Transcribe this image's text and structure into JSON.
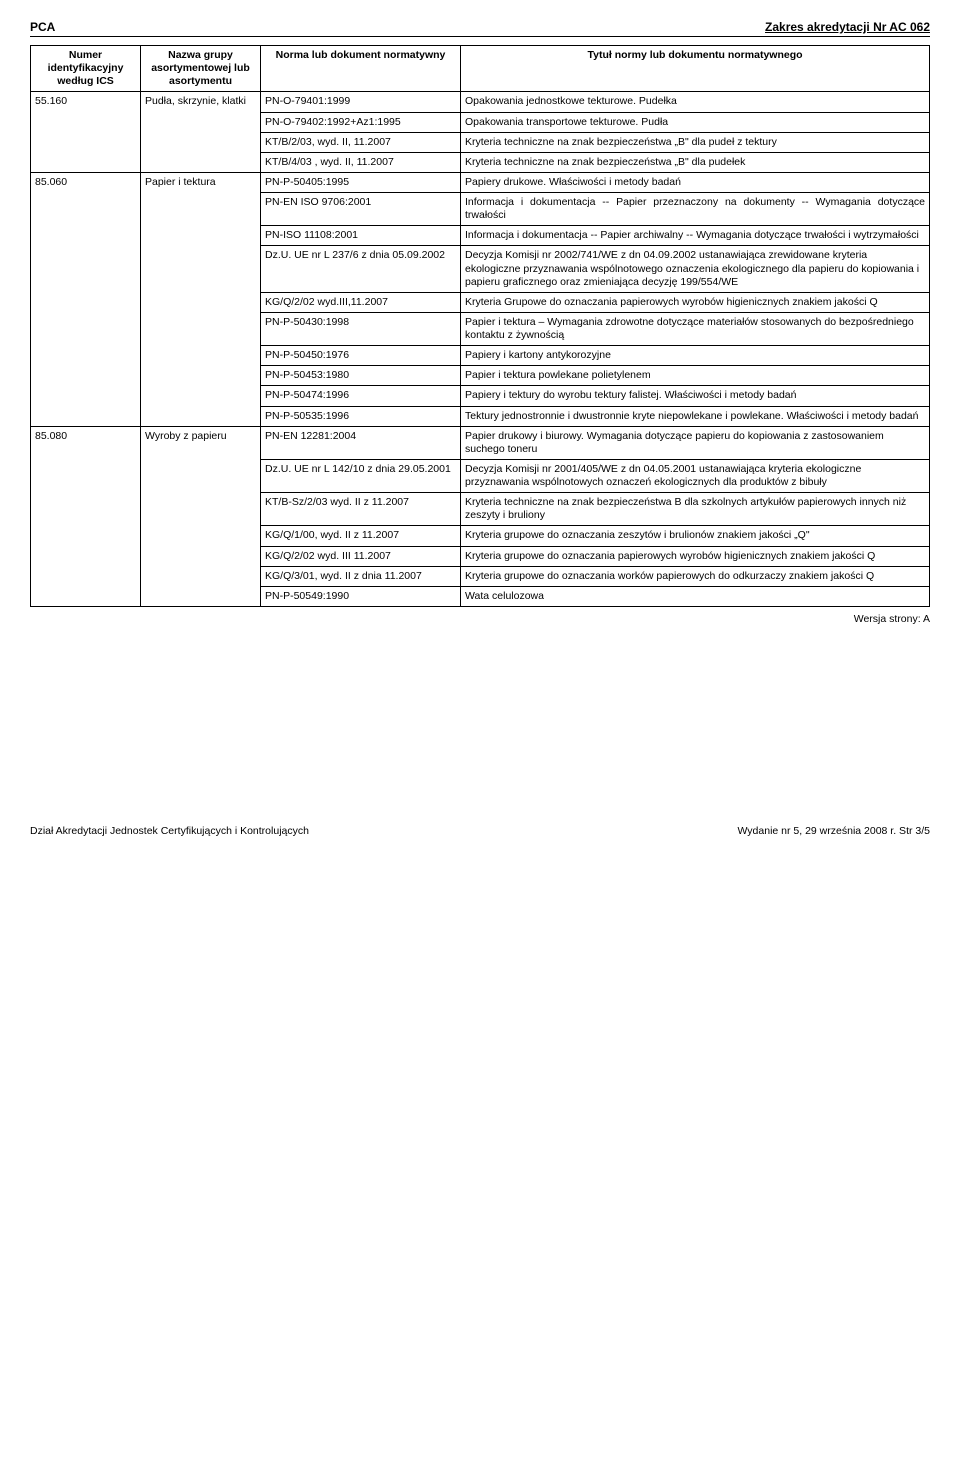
{
  "header": {
    "left": "PCA",
    "right": "Zakres akredytacji Nr AC 062"
  },
  "tableheaders": {
    "h1": "Numer identyfikacyjny według ICS",
    "h2": "Nazwa grupy asortymentowej lub asortymentu",
    "h3": "Norma lub dokument normatywny",
    "h4": "Tytuł normy lub dokumentu normatywnego"
  },
  "r1c1": "55.160",
  "r1c2": "Pudła, skrzynie, klatki",
  "r1c3": "PN-O-79401:1999",
  "r1c4": "Opakowania jednostkowe tekturowe. Pudełka",
  "r2c3": "PN-O-79402:1992+Az1:1995",
  "r2c4": "Opakowania transportowe tekturowe. Pudła",
  "r3c3": "KT/B/2/03, wyd. II, 11.2007",
  "r3c4": "Kryteria techniczne na znak bezpieczeństwa „B\" dla pudeł z tektury",
  "r4c3": "KT/B/4/03 , wyd. II, 11.2007",
  "r4c4": "Kryteria techniczne na znak bezpieczeństwa „B\" dla pudełek",
  "r5c1": "85.060",
  "r5c2": "Papier i tektura",
  "r5c3": "PN-P-50405:1995",
  "r5c4": "Papiery drukowe. Właściwości i metody badań",
  "r6c3": "PN-EN ISO 9706:2001",
  "r6c4": "Informacja i dokumentacja -- Papier przeznaczony na dokumenty -- Wymagania dotyczące trwałości",
  "r7c3": "PN-ISO 11108:2001",
  "r7c4": "Informacja i dokumentacja -- Papier archiwalny -- Wymagania dotyczące trwałości i wytrzymałości",
  "r8c3": "Dz.U. UE nr L 237/6 z dnia 05.09.2002",
  "r8c4": "Decyzja Komisji nr 2002/741/WE z dn 04.09.2002 ustanawiająca zrewidowane kryteria ekologiczne przyznawania wspólnotowego oznaczenia ekologicznego dla papieru do kopiowania i papieru graficznego oraz zmieniająca decyzję 199/554/WE",
  "r9c3": "KG/Q/2/02 wyd.III,11.2007",
  "r9c4": "Kryteria Grupowe do oznaczania papierowych wyrobów higienicznych znakiem jakości Q",
  "r10c3": "PN-P-50430:1998",
  "r10c4": "Papier i tektura – Wymagania zdrowotne dotyczące materiałów stosowanych do bezpośredniego kontaktu z żywnością",
  "r11c3": "PN-P-50450:1976",
  "r11c4": "Papiery i kartony antykorozyjne",
  "r12c3": "PN-P-50453:1980",
  "r12c4": "Papier i tektura powlekane polietylenem",
  "r13c3": "PN-P-50474:1996",
  "r13c4": "Papiery i tektury do wyrobu tektury falistej. Właściwości i metody badań",
  "r14c3": "PN-P-50535:1996",
  "r14c4": "Tektury jednostronnie i dwustronnie kryte niepowlekane i powlekane. Właściwości i metody badań",
  "r15c1": "85.080",
  "r15c2": "Wyroby z papieru",
  "r15c3": "PN-EN 12281:2004",
  "r15c4": "Papier drukowy i biurowy. Wymagania dotyczące papieru do kopiowania z zastosowaniem suchego toneru",
  "r16c3": "Dz.U. UE nr L 142/10 z dnia 29.05.2001",
  "r16c4": "Decyzja Komisji nr 2001/405/WE z dn 04.05.2001 ustanawiająca kryteria ekologiczne przyznawania wspólnotowych oznaczeń ekologicznych dla produktów z bibuły",
  "r17c3": "KT/B-Sz/2/03 wyd. II z 11.2007",
  "r17c4": "Kryteria techniczne na znak bezpieczeństwa B dla szkolnych artykułów papierowych innych niż zeszyty i bruliony",
  "r18c3": "KG/Q/1/00, wyd. II z 11.2007",
  "r18c4": "Kryteria grupowe do oznaczania zeszytów i brulionów znakiem jakości „Q\"",
  "r19c3": "KG/Q/2/02 wyd. III 11.2007",
  "r19c4": "Kryteria grupowe do oznaczania papierowych wyrobów higienicznych znakiem jakości Q",
  "r20c3": "KG/Q/3/01, wyd. II z dnia 11.2007",
  "r20c4": "Kryteria grupowe do oznaczania worków papierowych do odkurzaczy znakiem jakości Q",
  "r21c3": "PN-P-50549:1990",
  "r21c4": "Wata celulozowa",
  "version": "Wersja strony: A",
  "footer": {
    "left": "Dział Akredytacji Jednostek Certyfikujących i Kontrolujących",
    "right": "Wydanie nr 5, 29 września 2008 r.    Str 3/5"
  }
}
